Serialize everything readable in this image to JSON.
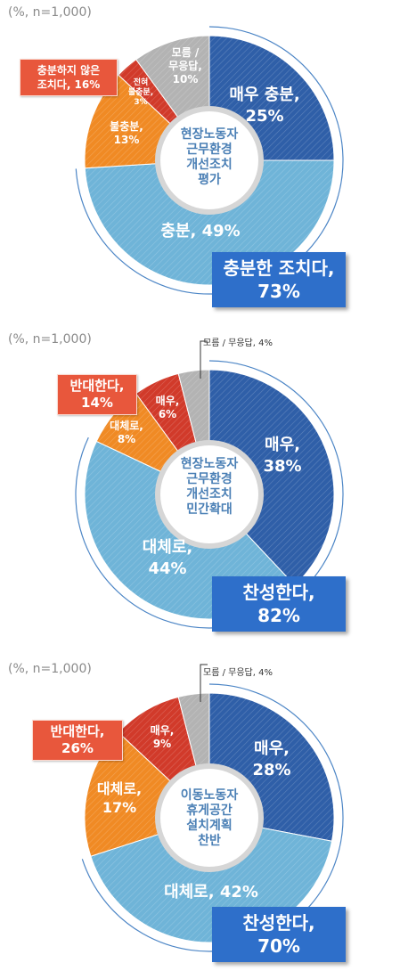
{
  "chart_data": [
    {
      "type": "pie",
      "note": "(%, n=1,000)",
      "center_label": "현장노동자\n근무환경\n개선조치\n평가",
      "slices": [
        {
          "label": "매우 충분,\n25%",
          "value": 25,
          "color": "#2f5fa8"
        },
        {
          "label": "충분, 49%",
          "value": 49,
          "color": "#6fb4d8"
        },
        {
          "label": "불충분,\n13%",
          "value": 13,
          "color": "#f08a24"
        },
        {
          "label": "전혀\n불충분,\n3%",
          "value": 3,
          "color": "#d13a2a"
        },
        {
          "label": "모름 /\n무응답,\n10%",
          "value": 10,
          "color": "#b3b3b3"
        }
      ],
      "callout_positive": "충분한 조치다,\n73%",
      "callout_negative": "충분하지 않은\n조치다, 16%",
      "callout_other": ""
    },
    {
      "type": "pie",
      "note": "(%, n=1,000)",
      "center_label": "현장노동자\n근무환경\n개선조치\n민간확대",
      "slices": [
        {
          "label": "매우,\n38%",
          "value": 38,
          "color": "#2f5fa8"
        },
        {
          "label": "대체로,\n44%",
          "value": 44,
          "color": "#6fb4d8"
        },
        {
          "label": "대체로,\n8%",
          "value": 8,
          "color": "#f08a24"
        },
        {
          "label": "매우,\n6%",
          "value": 6,
          "color": "#d13a2a"
        },
        {
          "label": "",
          "value": 4,
          "color": "#b3b3b3"
        }
      ],
      "callout_positive": "찬성한다,\n82%",
      "callout_negative": "반대한다,\n14%",
      "callout_other": "모름 / 무응답, 4%"
    },
    {
      "type": "pie",
      "note": "(%, n=1,000)",
      "center_label": "이동노동자\n휴게공간\n설치계획\n찬반",
      "slices": [
        {
          "label": "매우,\n28%",
          "value": 28,
          "color": "#2f5fa8"
        },
        {
          "label": "대체로, 42%",
          "value": 42,
          "color": "#6fb4d8"
        },
        {
          "label": "대체로,\n17%",
          "value": 17,
          "color": "#f08a24"
        },
        {
          "label": "매우,\n9%",
          "value": 9,
          "color": "#d13a2a"
        },
        {
          "label": "",
          "value": 4,
          "color": "#b3b3b3"
        }
      ],
      "callout_positive": "찬성한다,\n70%",
      "callout_negative": "반대한다,\n26%",
      "callout_other": "모름 / 무응답, 4%"
    }
  ]
}
